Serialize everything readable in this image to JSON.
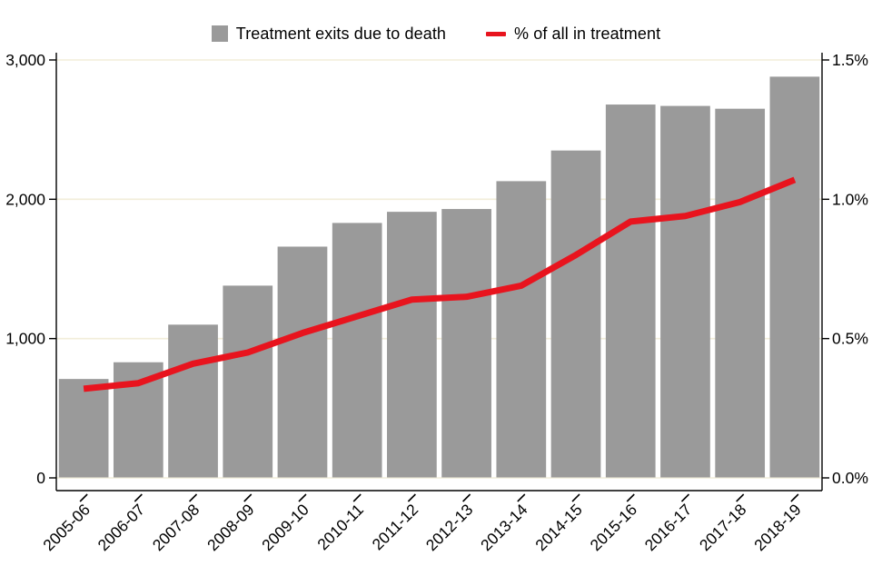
{
  "legend": {
    "bars_label": "Treatment exits due to death",
    "line_label": "% of all in treatment"
  },
  "colors": {
    "bar": "#9a9a9a",
    "line": "#e8141e",
    "grid": "#f2edda",
    "axis": "#000000",
    "text": "#000000"
  },
  "chart_data": {
    "type": "bar",
    "categories": [
      "2005-06",
      "2006-07",
      "2007-08",
      "2008-09",
      "2009-10",
      "2010-11",
      "2011-12",
      "2012-13",
      "2013-14",
      "2014-15",
      "2015-16",
      "2016-17",
      "2017-18",
      "2018-19"
    ],
    "series": [
      {
        "name": "Treatment exits due to death",
        "type": "bar",
        "axis": "left",
        "values": [
          710,
          830,
          1100,
          1380,
          1660,
          1830,
          1910,
          1930,
          2130,
          2350,
          2680,
          2670,
          2650,
          2880
        ]
      },
      {
        "name": "% of all in treatment",
        "type": "line",
        "axis": "right",
        "values": [
          0.32,
          0.34,
          0.41,
          0.45,
          0.52,
          0.58,
          0.64,
          0.65,
          0.69,
          0.8,
          0.92,
          0.94,
          0.99,
          1.07
        ]
      }
    ],
    "title": "",
    "xlabel": "",
    "ylabel": "",
    "left_axis": {
      "tick_labels": [
        "0",
        "1,000",
        "2,000",
        "3,000"
      ],
      "tick_values": [
        0,
        1000,
        2000,
        3000
      ],
      "ylim": [
        0,
        3000
      ]
    },
    "right_axis": {
      "tick_labels": [
        "0.0%",
        "0.5%",
        "1.0%",
        "1.5%"
      ],
      "tick_values": [
        0,
        0.5,
        1.0,
        1.5
      ],
      "ylim": [
        0,
        1.5
      ]
    },
    "grid": "horizontal",
    "legend_position": "top-center"
  }
}
